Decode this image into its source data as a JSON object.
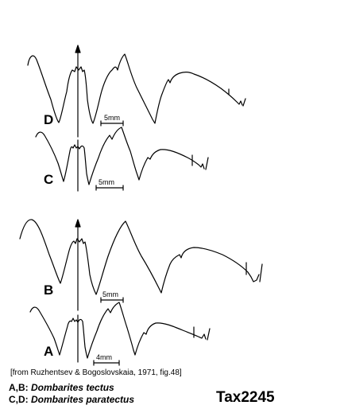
{
  "figures": [
    {
      "letter": "D",
      "scale": "5mm"
    },
    {
      "letter": "C",
      "scale": "5mm"
    },
    {
      "letter": "B",
      "scale": "5mm"
    },
    {
      "letter": "A",
      "scale": "4mm"
    }
  ],
  "citation": "[from Ruzhentsev & Bogoslovskaia, 1971, fig.48]",
  "legend": [
    {
      "prefix": "A,B: ",
      "taxon": "Dombarites tectus"
    },
    {
      "prefix": "C,D: ",
      "taxon": "Dombarites paratectus"
    }
  ],
  "tax_id": "Tax2245"
}
